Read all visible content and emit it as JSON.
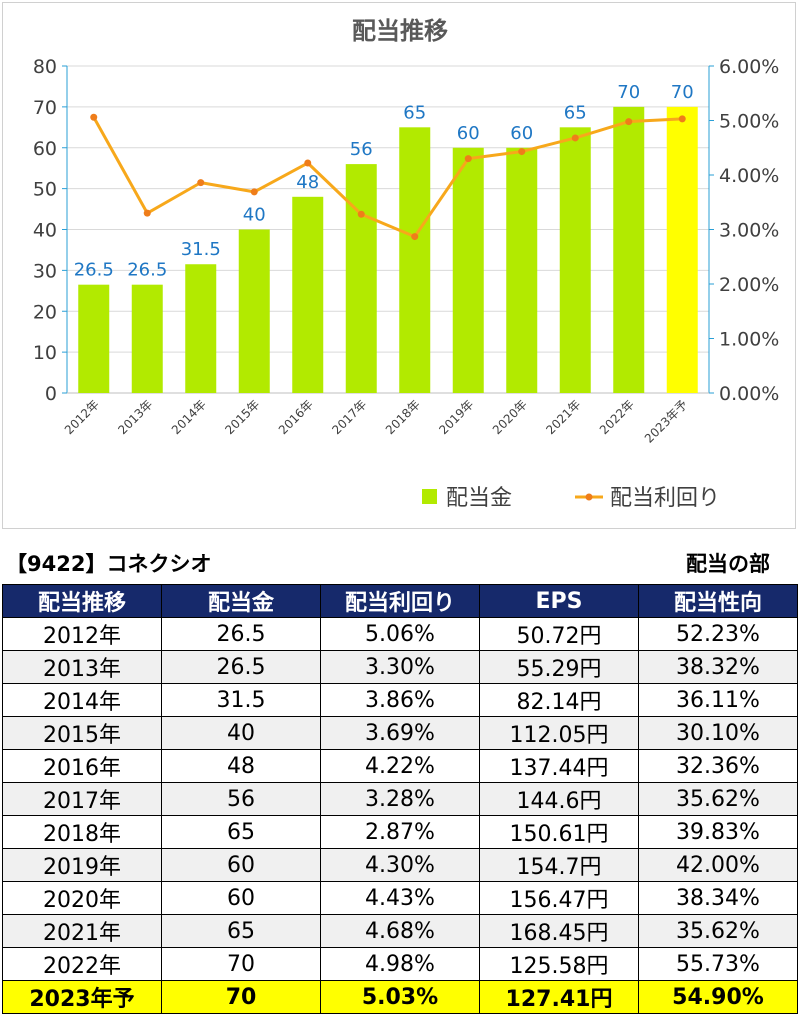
{
  "chart_data": {
    "type": "bar+line",
    "title": "配当推移",
    "categories": [
      "2012年",
      "2013年",
      "2014年",
      "2015年",
      "2016年",
      "2017年",
      "2018年",
      "2019年",
      "2020年",
      "2021年",
      "2022年",
      "2023年予"
    ],
    "series": [
      {
        "name": "配当金",
        "type": "bar",
        "axis": "left",
        "values": [
          26.5,
          26.5,
          31.5,
          40,
          48,
          56,
          65,
          60,
          60,
          65,
          70,
          70
        ],
        "color": "#b2ea00",
        "highlight_color": "#ffff00",
        "highlight_index": 11
      },
      {
        "name": "配当利回り",
        "type": "line",
        "axis": "right",
        "values": [
          5.06,
          3.3,
          3.86,
          3.69,
          4.22,
          3.28,
          2.87,
          4.3,
          4.43,
          4.68,
          4.98,
          5.03
        ],
        "color": "#f7a81b"
      }
    ],
    "y_left": {
      "min": 0,
      "max": 80,
      "ticks": [
        "0",
        "10",
        "20",
        "30",
        "40",
        "50",
        "60",
        "70",
        "80"
      ]
    },
    "y_right": {
      "min": 0,
      "max": 6,
      "ticks": [
        "0.00%",
        "1.00%",
        "2.00%",
        "3.00%",
        "4.00%",
        "5.00%",
        "6.00%"
      ]
    },
    "data_labels": [
      "26.5",
      "26.5",
      "31.5",
      "40",
      "48",
      "56",
      "65",
      "60",
      "60",
      "65",
      "70",
      "70"
    ],
    "legend_position": "bottom-right",
    "label_color": "#1f77c4"
  },
  "header": {
    "code_name": "【9422】コネクシオ",
    "section": "配当の部"
  },
  "table": {
    "columns": [
      "配当推移",
      "配当金",
      "配当利回り",
      "EPS",
      "配当性向"
    ],
    "rows": [
      [
        "2012年",
        "26.5",
        "5.06%",
        "50.72円",
        "52.23%"
      ],
      [
        "2013年",
        "26.5",
        "3.30%",
        "55.29円",
        "38.32%"
      ],
      [
        "2014年",
        "31.5",
        "3.86%",
        "82.14円",
        "36.11%"
      ],
      [
        "2015年",
        "40",
        "3.69%",
        "112.05円",
        "30.10%"
      ],
      [
        "2016年",
        "48",
        "4.22%",
        "137.44円",
        "32.36%"
      ],
      [
        "2017年",
        "56",
        "3.28%",
        "144.6円",
        "35.62%"
      ],
      [
        "2018年",
        "65",
        "2.87%",
        "150.61円",
        "39.83%"
      ],
      [
        "2019年",
        "60",
        "4.30%",
        "154.7円",
        "42.00%"
      ],
      [
        "2020年",
        "60",
        "4.43%",
        "156.47円",
        "38.34%"
      ],
      [
        "2021年",
        "65",
        "4.68%",
        "168.45円",
        "35.62%"
      ],
      [
        "2022年",
        "70",
        "4.98%",
        "125.58円",
        "55.73%"
      ],
      [
        "2023年予",
        "70",
        "5.03%",
        "127.41円",
        "54.90%"
      ]
    ]
  }
}
